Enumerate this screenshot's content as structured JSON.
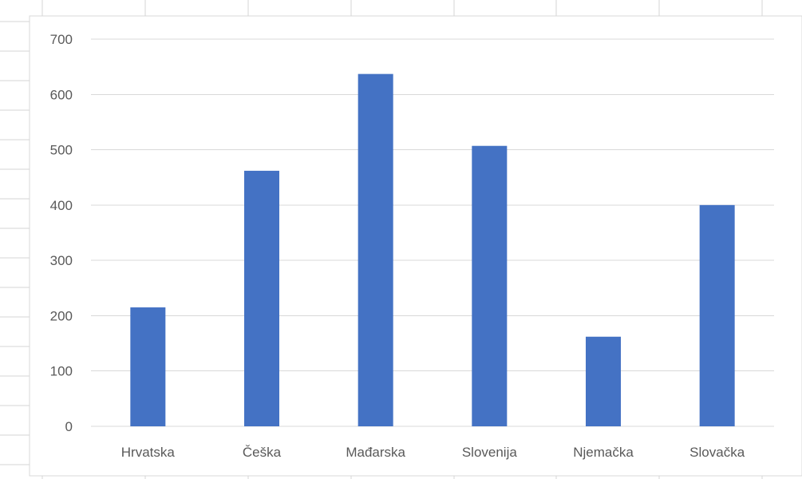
{
  "chart_data": {
    "type": "bar",
    "title": "",
    "xlabel": "",
    "ylabel": "",
    "categories": [
      "Hrvatska",
      "Češka",
      "Mađarska",
      "Slovenija",
      "Njemačka",
      "Slovačka"
    ],
    "values": [
      215,
      462,
      637,
      507,
      162,
      400
    ],
    "ylim": [
      0,
      700
    ],
    "yticks": [
      0,
      100,
      200,
      300,
      400,
      500,
      600,
      700
    ],
    "grid": true,
    "legend": "none",
    "colors": {
      "bar": "#4472C4",
      "gridline": "#D9D9D9",
      "tick_text": "#595959",
      "sheet_lines": "#D4D4D4",
      "chart_border": "#D9D9D9"
    }
  }
}
